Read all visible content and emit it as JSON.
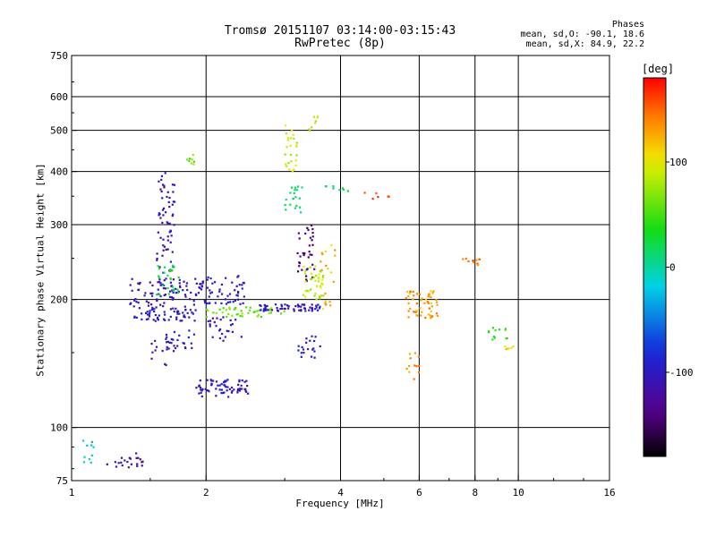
{
  "header": {
    "title_line1": "Tromsø 20151107 03:14:00-03:15:43",
    "title_line2": "RwPretec (8p)",
    "phases_title": "Phases",
    "phases_o": "mean, sd,O: -90.1, 18.6",
    "phases_x": "mean, sd,X:  84.9, 22.2"
  },
  "colorbar": {
    "title": "[deg]",
    "ticks": [
      {
        "value": 100,
        "label": "100"
      },
      {
        "value": 0,
        "label": "0"
      },
      {
        "value": -100,
        "label": "-100"
      }
    ],
    "range": [
      -180,
      180
    ]
  },
  "chart_data": {
    "type": "scatter",
    "title": "Tromsø 20151107 03:14:00-03:15:43",
    "subtitle": "RwPretec (8p)",
    "xlabel": "Frequency [MHz]",
    "ylabel": "Stationary phase Virtual Height [km]",
    "xscale": "log",
    "yscale": "log",
    "xlim": [
      1,
      16
    ],
    "ylim": [
      75,
      750
    ],
    "xticks": [
      {
        "value": 1,
        "label": "1"
      },
      {
        "value": 2,
        "label": "2"
      },
      {
        "value": 4,
        "label": "4"
      },
      {
        "value": 6,
        "label": "6"
      },
      {
        "value": 8,
        "label": "8"
      },
      {
        "value": 10,
        "label": "10"
      },
      {
        "value": 16,
        "label": "16"
      }
    ],
    "x_gridlines": [
      2,
      4,
      6,
      8,
      10
    ],
    "yticks": [
      {
        "value": 75,
        "label": "75"
      },
      {
        "value": 100,
        "label": "100"
      },
      {
        "value": 200,
        "label": "200"
      },
      {
        "value": 300,
        "label": "300"
      },
      {
        "value": 400,
        "label": "400"
      },
      {
        "value": 500,
        "label": "500"
      },
      {
        "value": 600,
        "label": "600"
      },
      {
        "value": 750,
        "label": "750"
      }
    ],
    "y_gridlines": [
      100,
      200,
      300,
      400,
      500,
      600
    ],
    "color_encoding": "phase [deg]",
    "clusters": [
      {
        "f_min": 1.05,
        "f_max": 1.12,
        "h_min": 80,
        "h_max": 95,
        "phase": -20,
        "n": 10
      },
      {
        "f_min": 1.2,
        "f_max": 1.45,
        "h_min": 80,
        "h_max": 87,
        "phase": -110,
        "n": 22
      },
      {
        "f_min": 1.38,
        "f_max": 1.9,
        "h_min": 178,
        "h_max": 192,
        "phase": -100,
        "n": 60
      },
      {
        "f_min": 1.35,
        "f_max": 1.95,
        "h_min": 192,
        "h_max": 225,
        "phase": -105,
        "n": 70
      },
      {
        "f_min": 1.55,
        "f_max": 1.7,
        "h_min": 200,
        "h_max": 400,
        "phase": -110,
        "n": 80
      },
      {
        "f_min": 1.55,
        "f_max": 1.75,
        "h_min": 205,
        "h_max": 245,
        "phase": 30,
        "n": 25
      },
      {
        "f_min": 1.62,
        "f_max": 1.9,
        "h_min": 150,
        "h_max": 170,
        "phase": -100,
        "n": 25
      },
      {
        "f_min": 1.5,
        "f_max": 1.65,
        "h_min": 140,
        "h_max": 160,
        "phase": -95,
        "n": 12
      },
      {
        "f_min": 1.8,
        "f_max": 1.9,
        "h_min": 410,
        "h_max": 440,
        "phase": 60,
        "n": 8
      },
      {
        "f_min": 1.9,
        "f_max": 2.5,
        "h_min": 118,
        "h_max": 130,
        "phase": -100,
        "n": 70
      },
      {
        "f_min": 1.95,
        "f_max": 2.45,
        "h_min": 195,
        "h_max": 228,
        "phase": -100,
        "n": 55
      },
      {
        "f_min": 2.0,
        "f_max": 2.4,
        "h_min": 160,
        "h_max": 182,
        "phase": -100,
        "n": 25
      },
      {
        "f_min": 2.0,
        "f_max": 3.0,
        "h_min": 182,
        "h_max": 192,
        "phase": 60,
        "n": 45
      },
      {
        "f_min": 2.6,
        "f_max": 3.6,
        "h_min": 188,
        "h_max": 195,
        "phase": -100,
        "n": 60
      },
      {
        "f_min": 3.0,
        "f_max": 3.2,
        "h_min": 400,
        "h_max": 515,
        "phase": 90,
        "n": 25
      },
      {
        "f_min": 3.0,
        "f_max": 3.3,
        "h_min": 320,
        "h_max": 370,
        "phase": 10,
        "n": 20
      },
      {
        "f_min": 3.2,
        "f_max": 3.5,
        "h_min": 220,
        "h_max": 300,
        "phase": -140,
        "n": 35
      },
      {
        "f_min": 3.3,
        "f_max": 3.7,
        "h_min": 200,
        "h_max": 240,
        "phase": 85,
        "n": 40
      },
      {
        "f_min": 3.2,
        "f_max": 3.6,
        "h_min": 145,
        "h_max": 165,
        "phase": -100,
        "n": 20
      },
      {
        "f_min": 3.4,
        "f_max": 3.6,
        "h_min": 500,
        "h_max": 540,
        "phase": 85,
        "n": 8
      },
      {
        "f_min": 3.6,
        "f_max": 3.9,
        "h_min": 190,
        "h_max": 270,
        "phase": 120,
        "n": 20
      },
      {
        "f_min": 3.6,
        "f_max": 4.2,
        "h_min": 360,
        "h_max": 370,
        "phase": 10,
        "n": 8
      },
      {
        "f_min": 4.5,
        "f_max": 5.2,
        "h_min": 345,
        "h_max": 358,
        "phase": 170,
        "n": 6
      },
      {
        "f_min": 5.6,
        "f_max": 6.6,
        "h_min": 180,
        "h_max": 210,
        "phase": 130,
        "n": 55
      },
      {
        "f_min": 5.6,
        "f_max": 6.0,
        "h_min": 130,
        "h_max": 150,
        "phase": 130,
        "n": 12
      },
      {
        "f_min": 7.4,
        "f_max": 8.3,
        "h_min": 240,
        "h_max": 250,
        "phase": 150,
        "n": 10
      },
      {
        "f_min": 8.5,
        "f_max": 9.5,
        "h_min": 160,
        "h_max": 172,
        "phase": 40,
        "n": 12
      },
      {
        "f_min": 9.0,
        "f_max": 9.8,
        "h_min": 150,
        "h_max": 158,
        "phase": 110,
        "n": 6
      }
    ]
  }
}
